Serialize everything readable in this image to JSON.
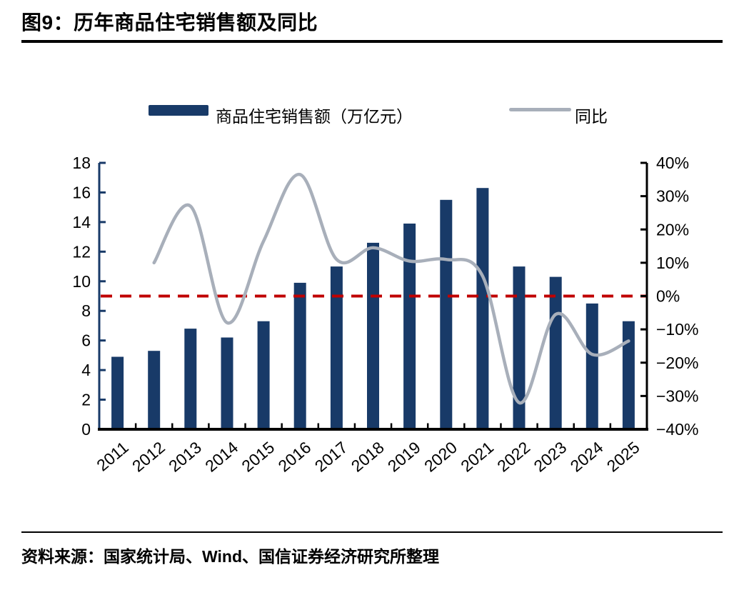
{
  "page": {
    "title": "图9：历年商品住宅销售额及同比",
    "source": "资料来源：国家统计局、Wind、国信证券经济研究所整理"
  },
  "legend": {
    "bar_label": "商品住宅销售额（万亿元）",
    "line_label": "同比"
  },
  "colors": {
    "bar": "#183A68",
    "line": "#A8AFBA",
    "reference_line": "#C00000",
    "left_axis": "#183A68",
    "right_axis": "#000000",
    "x_axis": "#000000",
    "text": "#000000"
  },
  "chart_data": {
    "type": "bar+line",
    "title": "图9：历年商品住宅销售额及同比",
    "categories": [
      "2011",
      "2012",
      "2013",
      "2014",
      "2015",
      "2016",
      "2017",
      "2018",
      "2019",
      "2020",
      "2021",
      "2022",
      "2023",
      "2024",
      "2025"
    ],
    "series": [
      {
        "name": "商品住宅销售额（万亿元）",
        "type": "bar",
        "axis": "left",
        "values": [
          4.9,
          5.3,
          6.8,
          6.2,
          7.3,
          9.9,
          11.0,
          12.6,
          13.9,
          15.5,
          16.3,
          11.0,
          10.3,
          8.5,
          7.3
        ]
      },
      {
        "name": "同比",
        "type": "line",
        "axis": "right",
        "unit": "%",
        "values": [
          null,
          10,
          27,
          -8,
          16.5,
          36.5,
          11,
          14.5,
          10.5,
          11,
          6,
          -32,
          -5.5,
          -17.5,
          -13.5
        ]
      }
    ],
    "left_axis": {
      "min": 0,
      "max": 18,
      "step": 2,
      "tick_labels": [
        "0",
        "2",
        "4",
        "6",
        "8",
        "10",
        "12",
        "14",
        "16",
        "18"
      ]
    },
    "right_axis": {
      "min": -40,
      "max": 40,
      "step": 10,
      "unit": "%",
      "tick_labels": [
        "−40%",
        "−30%",
        "−20%",
        "−10%",
        "0%",
        "10%",
        "20%",
        "30%",
        "40%"
      ]
    },
    "reference_line": {
      "axis": "right",
      "value": 0,
      "style": "dashed",
      "color": "#C00000"
    },
    "legend_position": "top",
    "grid": false,
    "x_label_rotation": -40
  }
}
